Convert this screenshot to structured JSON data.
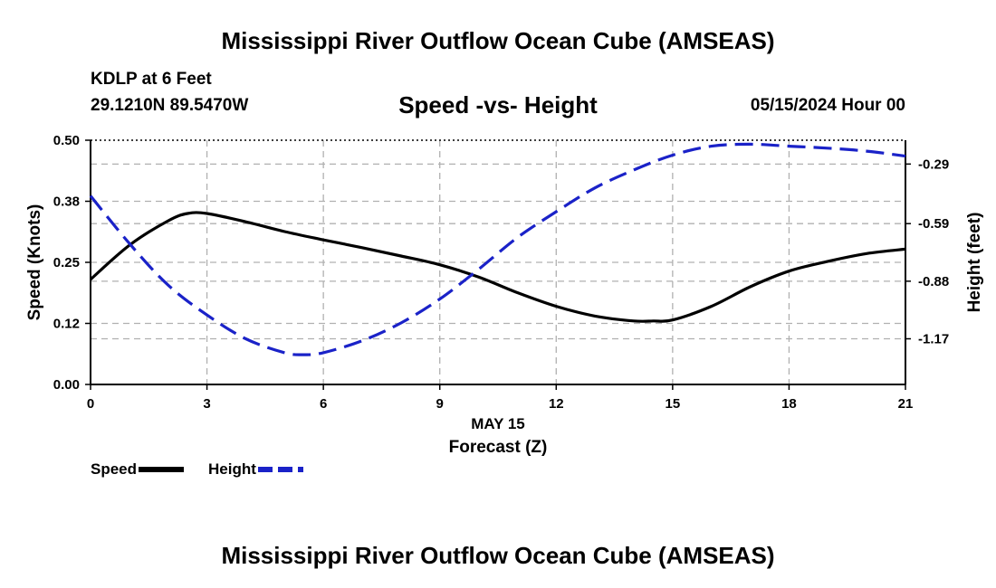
{
  "header": {
    "title": "Mississippi River Outflow Ocean Cube (AMSEAS)",
    "station": "KDLP at 6 Feet",
    "coords": "29.1210N  89.5470W",
    "subtitle": "Speed -vs- Height",
    "datetime": "05/15/2024 Hour 00"
  },
  "footer": {
    "title": "Mississippi River Outflow Ocean Cube (AMSEAS)"
  },
  "legend": {
    "speed": "Speed",
    "height": "Height"
  },
  "colors": {
    "speed": "#000000",
    "height": "#1a22c8",
    "grid": "#b0b0b0"
  },
  "chart_data": {
    "type": "line",
    "title": "Speed -vs- Height",
    "xlabel": "Forecast (Z)",
    "xdate_label": "MAY 15",
    "ylabel_left": "Speed (Knots)",
    "ylabel_right": "Height (feet)",
    "xlim": [
      0,
      21
    ],
    "ylim_left": [
      0,
      0.5
    ],
    "ylim_right": [
      -1.4,
      -0.17
    ],
    "x_ticks": [
      0,
      3,
      6,
      9,
      12,
      15,
      18,
      21
    ],
    "x_tick_labels": [
      "0",
      "3",
      "6",
      "9",
      "12",
      "15",
      "18",
      "21"
    ],
    "y_left_ticks": [
      0,
      0.125,
      0.25,
      0.375,
      0.5
    ],
    "y_left_tick_labels": [
      "0.00",
      "0.12",
      "0.25",
      "0.38",
      "0.50"
    ],
    "y_right_ticks": [
      -0.29,
      -0.59,
      -0.88,
      -1.17
    ],
    "y_right_tick_labels": [
      "-0.29",
      "-0.59",
      "-0.88",
      "-1.17"
    ],
    "grid": true,
    "series": [
      {
        "name": "Speed",
        "axis": "left",
        "style": "solid",
        "x": [
          0,
          1,
          2,
          2.5,
          3,
          4,
          5,
          6,
          7,
          8,
          9,
          10,
          11,
          12,
          13,
          14,
          14.5,
          15,
          16,
          17,
          18,
          19,
          20,
          21
        ],
        "y": [
          0.215,
          0.285,
          0.335,
          0.35,
          0.35,
          0.333,
          0.313,
          0.296,
          0.28,
          0.263,
          0.245,
          0.22,
          0.188,
          0.16,
          0.14,
          0.13,
          0.13,
          0.132,
          0.16,
          0.2,
          0.232,
          0.252,
          0.268,
          0.277
        ]
      },
      {
        "name": "Height",
        "axis": "right",
        "style": "dashed",
        "x": [
          0,
          1,
          2,
          3,
          4,
          5,
          5.5,
          6,
          7,
          8,
          9,
          10,
          11,
          12,
          13,
          14,
          15,
          16,
          17,
          18,
          19,
          20,
          21
        ],
        "y": [
          -0.45,
          -0.69,
          -0.9,
          -1.05,
          -1.17,
          -1.24,
          -1.25,
          -1.24,
          -1.18,
          -1.09,
          -0.97,
          -0.82,
          -0.66,
          -0.53,
          -0.41,
          -0.32,
          -0.245,
          -0.2,
          -0.19,
          -0.2,
          -0.21,
          -0.225,
          -0.25
        ]
      }
    ]
  }
}
